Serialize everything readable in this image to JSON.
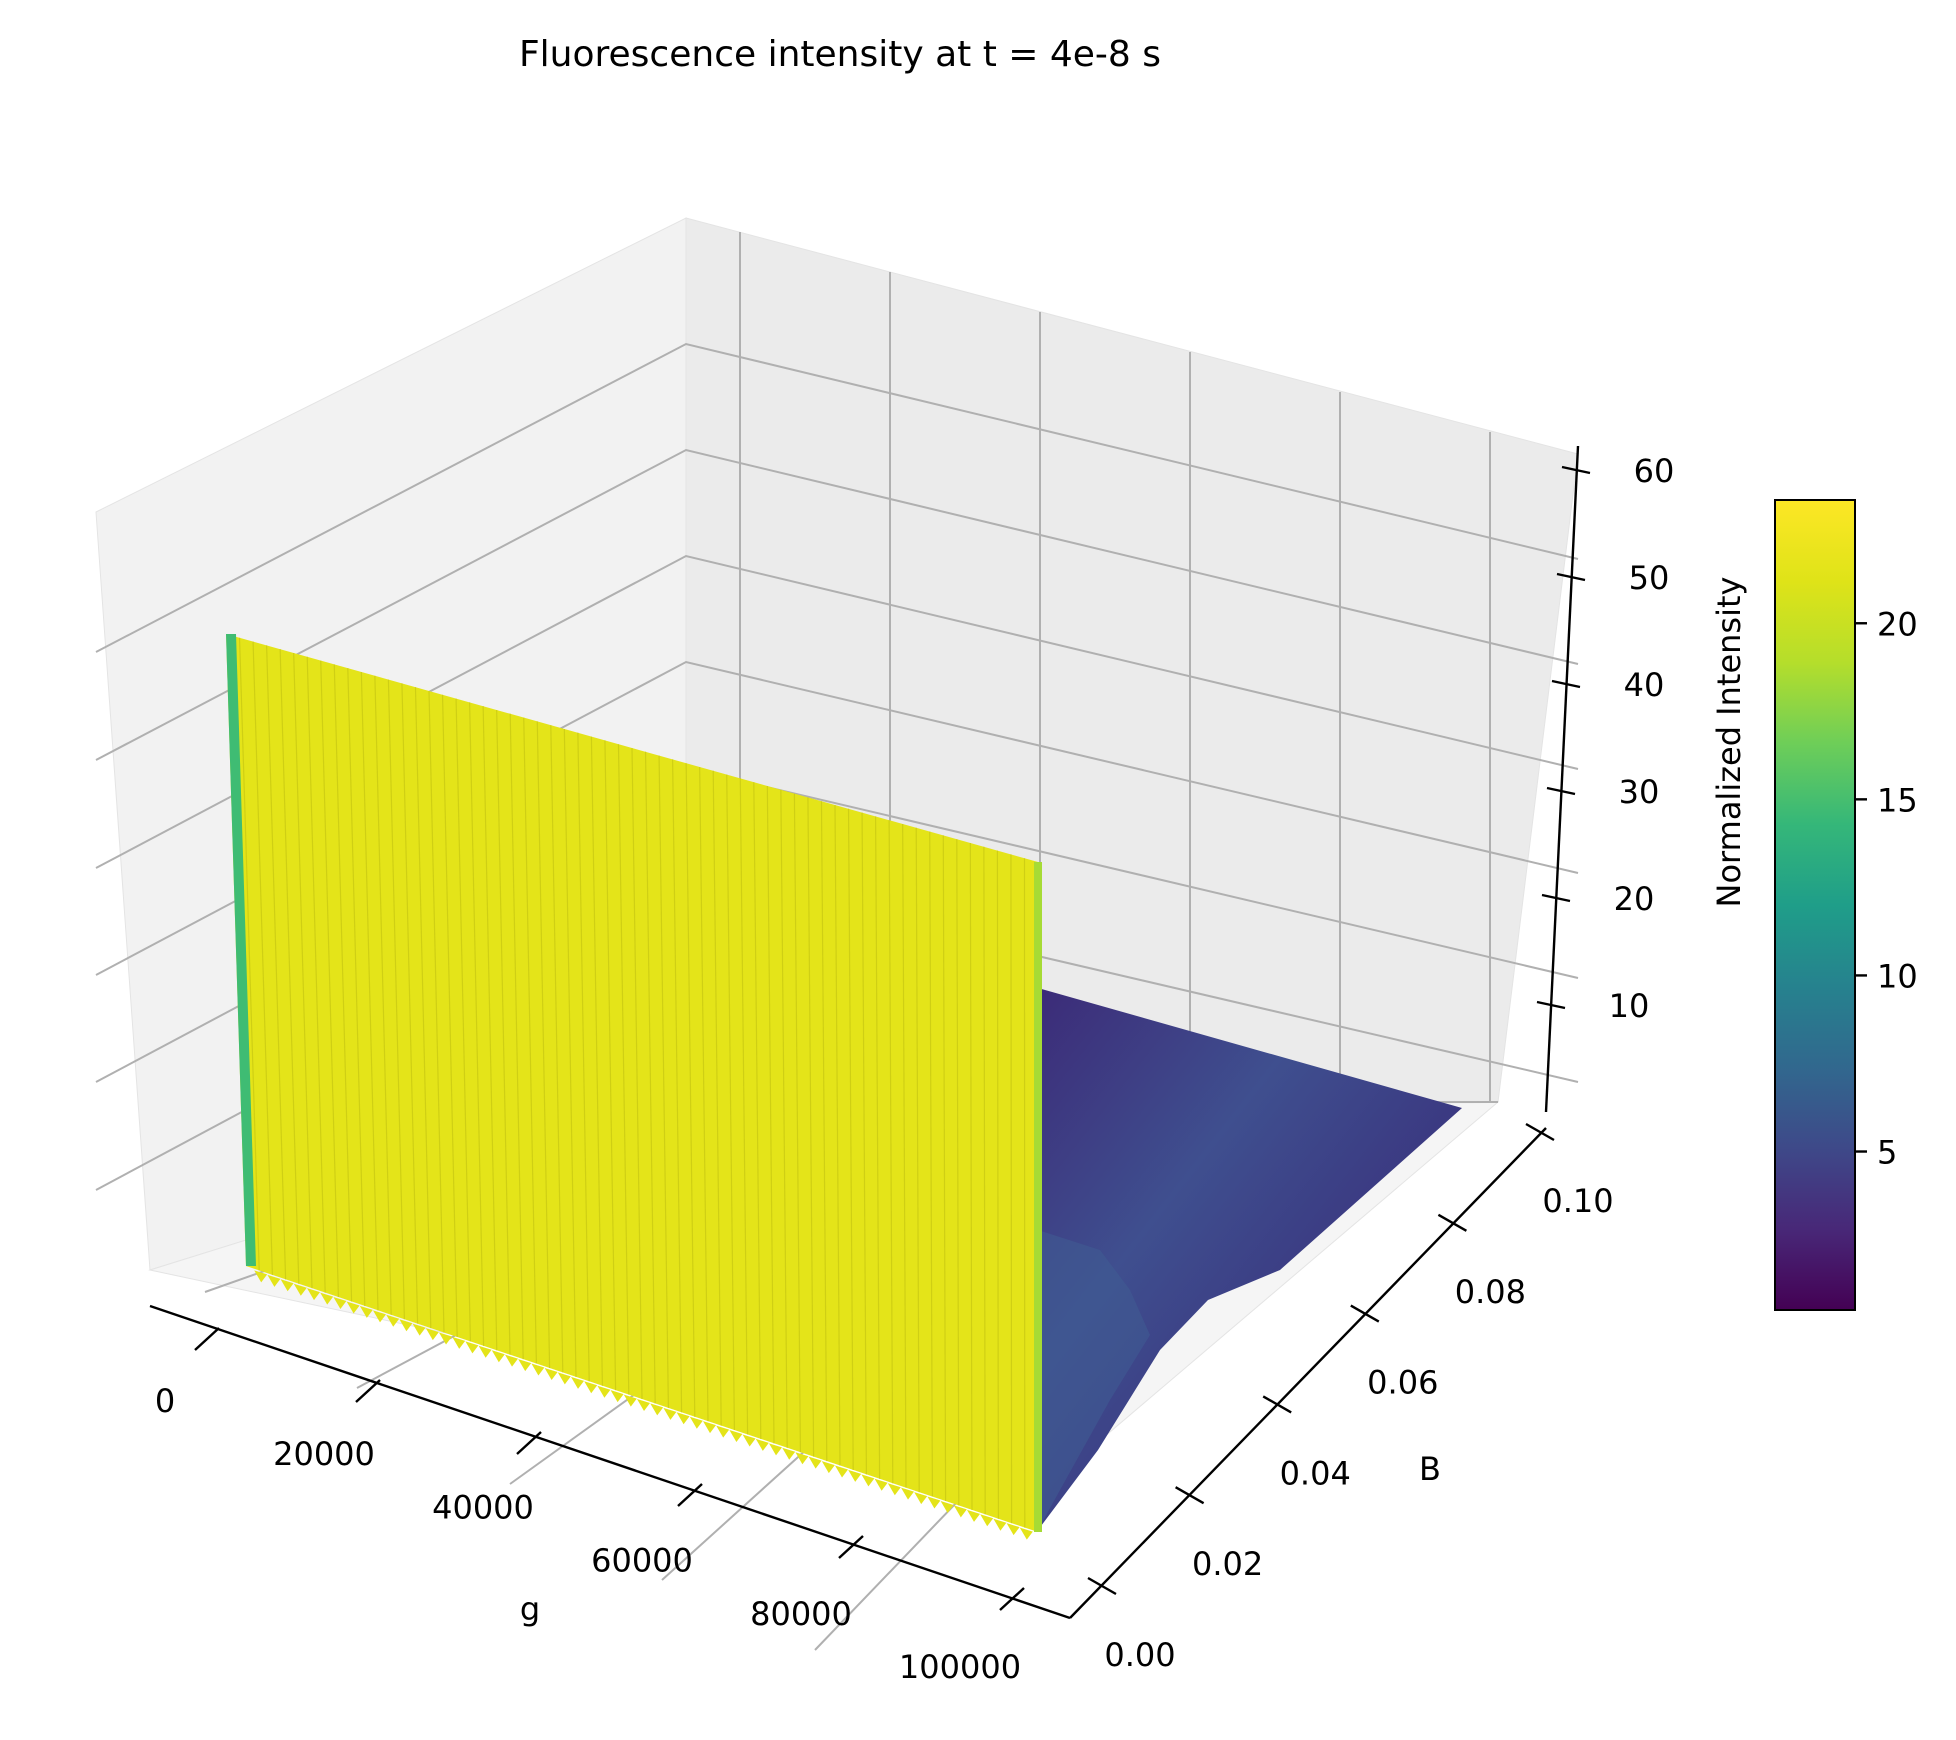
{
  "chart_data": {
    "type": "surface3d",
    "title": "Fluorescence intensity at t = 4e-8 s",
    "xlabel": "g",
    "ylabel": "B",
    "zlabel": "",
    "x_ticks": [
      "0",
      "20000",
      "40000",
      "60000",
      "80000",
      "100000"
    ],
    "y_ticks": [
      "0.00",
      "0.02",
      "0.04",
      "0.06",
      "0.08",
      "0.10"
    ],
    "z_ticks": [
      "10",
      "20",
      "30",
      "40",
      "50",
      "60"
    ],
    "xlim": [
      0,
      100000
    ],
    "ylim": [
      0,
      0.1
    ],
    "zlim": [
      0,
      60
    ],
    "grid": true,
    "colormap": "viridis",
    "colorbar": {
      "label": "Normalized Intensity",
      "ticks": [
        "5",
        "10",
        "15",
        "20"
      ],
      "range": [
        0.5,
        23.5
      ],
      "placement": "right"
    },
    "surface": {
      "description_points": [
        {
          "g": 0,
          "B": 0.0,
          "intensity": 23
        },
        {
          "g": 0,
          "B": 0.1,
          "intensity": 23
        },
        {
          "g": 100000,
          "B": 0.0,
          "intensity": 0.5
        },
        {
          "g": 100000,
          "B": 0.03,
          "intensity": 4.5
        },
        {
          "g": 100000,
          "B": 0.05,
          "intensity": 1.5
        },
        {
          "g": 100000,
          "B": 0.1,
          "intensity": 0.5
        }
      ],
      "wall_B_value": 0.0,
      "wall_intensity": 22
    }
  }
}
